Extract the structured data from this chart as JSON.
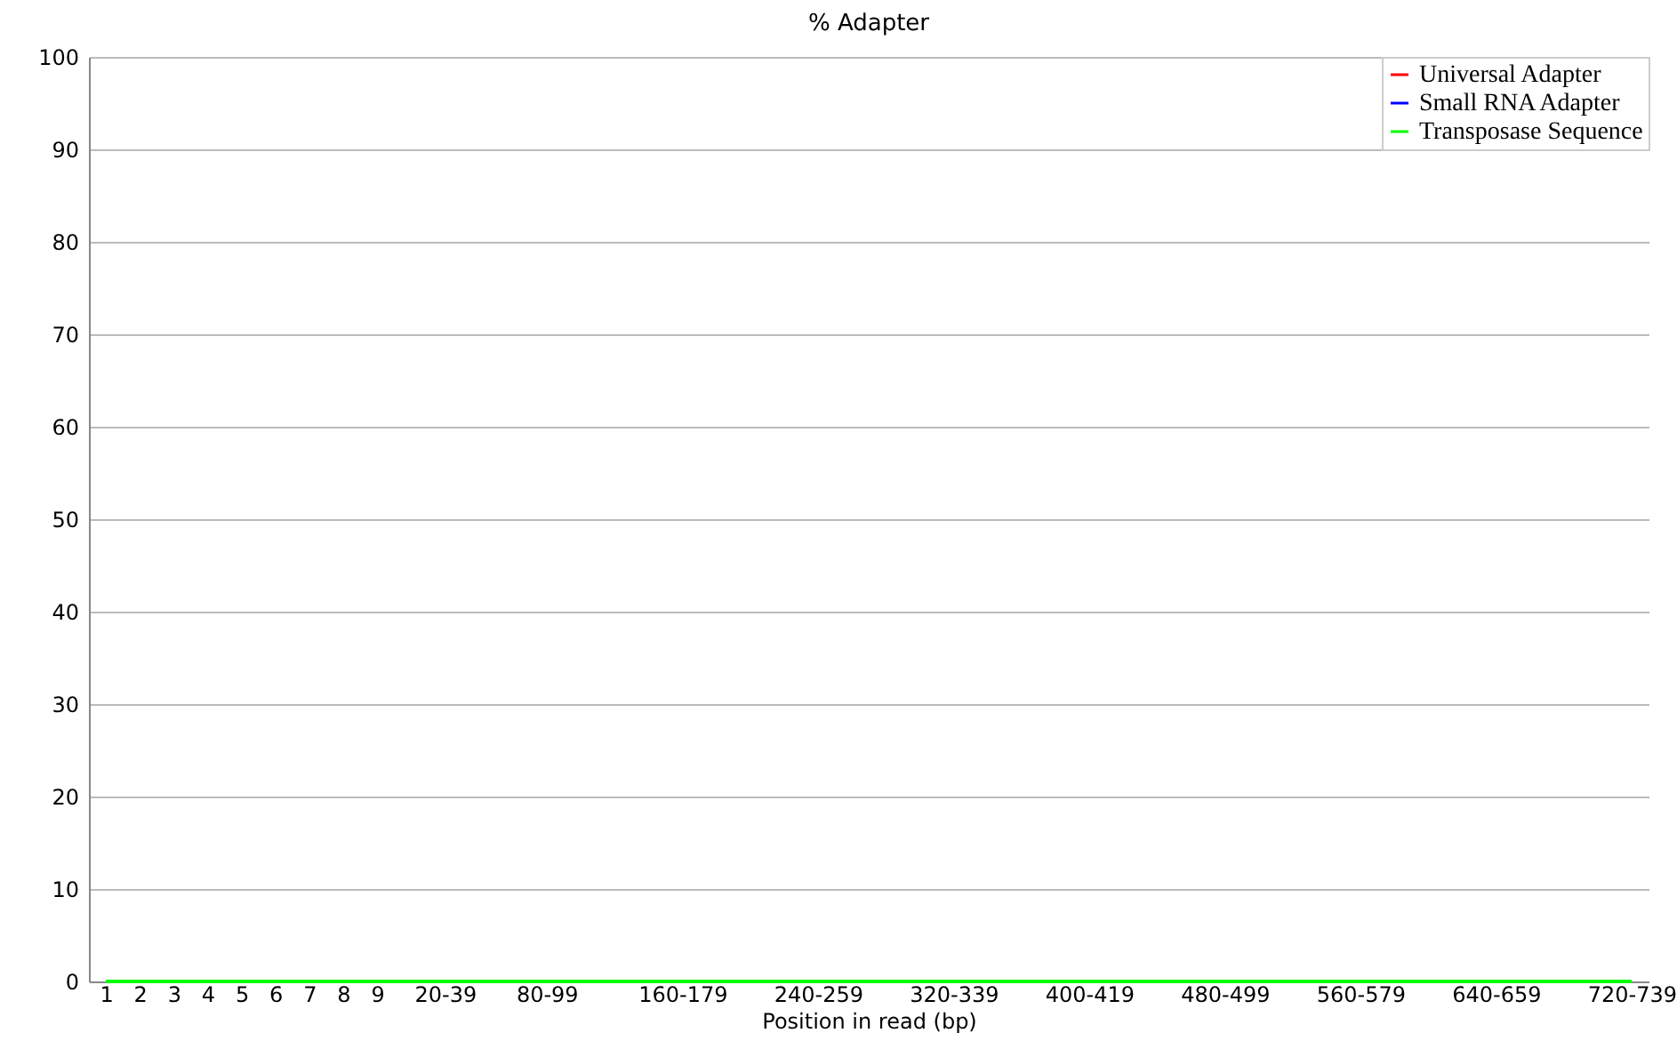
{
  "chart_data": {
    "type": "line",
    "title": "% Adapter",
    "xlabel": "Position in read (bp)",
    "categories": [
      "1",
      "2",
      "3",
      "4",
      "5",
      "6",
      "7",
      "8",
      "9",
      null,
      "20-39",
      null,
      null,
      "80-99",
      null,
      null,
      null,
      "160-179",
      null,
      null,
      null,
      "240-259",
      null,
      null,
      null,
      "320-339",
      null,
      null,
      null,
      "400-419",
      null,
      null,
      null,
      "480-499",
      null,
      null,
      null,
      "560-579",
      null,
      null,
      null,
      "640-659",
      null,
      null,
      null,
      "720-739"
    ],
    "series": [
      {
        "name": "Universal Adapter",
        "color": "#ff0000",
        "values": [
          null,
          null,
          null,
          null,
          null,
          null,
          null,
          null,
          null,
          null,
          null,
          null,
          null,
          null,
          null,
          null,
          null,
          null,
          null,
          null,
          null,
          null,
          null,
          null,
          null,
          null,
          null,
          null,
          null,
          null,
          null,
          null,
          null,
          null,
          null,
          null,
          null,
          null,
          null,
          null,
          null,
          null,
          null,
          null,
          null,
          null
        ]
      },
      {
        "name": "Small RNA Adapter",
        "color": "#0000ff",
        "values": [
          null,
          null,
          null,
          null,
          null,
          null,
          null,
          null,
          null,
          null,
          null,
          null,
          null,
          null,
          null,
          null,
          null,
          null,
          null,
          null,
          null,
          null,
          null,
          null,
          null,
          null,
          null,
          null,
          null,
          null,
          null,
          null,
          null,
          null,
          null,
          null,
          null,
          null,
          null,
          null,
          null,
          null,
          null,
          null,
          null,
          null
        ]
      },
      {
        "name": "Transposase Sequence",
        "color": "#00ff00",
        "values": [
          0,
          0,
          0,
          0,
          0,
          0,
          0,
          0,
          0,
          0,
          0,
          0,
          0,
          0,
          0,
          0,
          0,
          0,
          0,
          0,
          0,
          0,
          0,
          0,
          0,
          0,
          0,
          0,
          0,
          0,
          0,
          0,
          0,
          0,
          0,
          0,
          0,
          0,
          0,
          0,
          0,
          0,
          0,
          0,
          0,
          0
        ]
      }
    ],
    "ylim": [
      0,
      100
    ],
    "yticks": [
      0,
      10,
      20,
      30,
      40,
      50,
      60,
      70,
      80,
      90,
      100
    ],
    "grid": "y",
    "legend": "top right"
  }
}
